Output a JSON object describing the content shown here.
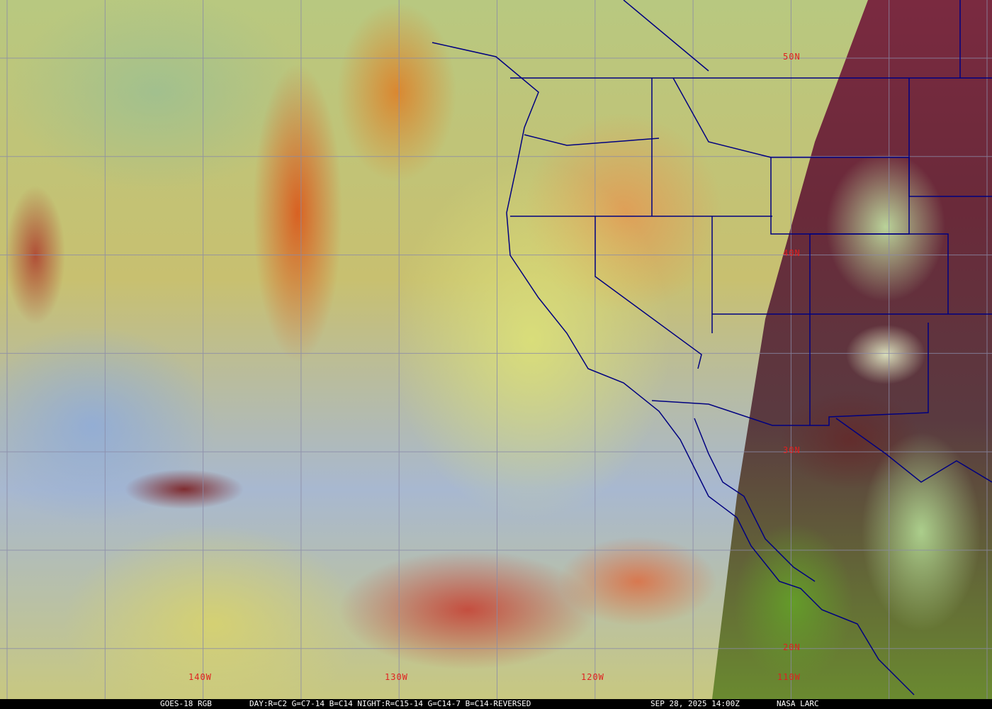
{
  "map": {
    "lat_labels": [
      "50N",
      "40N",
      "30N",
      "20N"
    ],
    "lon_labels": [
      "140W",
      "130W",
      "120W",
      "110W"
    ],
    "grid_color": "#8a8aa8",
    "label_color": "#e02020",
    "boundary_color": "#000080"
  },
  "caption": {
    "satellite": "GOES-18 RGB",
    "recipe": "DAY:R=C2 G=C7-14 B=C14 NIGHT:R=C15-14 G=C14-7 B=C14-REVERSED",
    "timestamp": "SEP 28, 2025 14:00Z",
    "source": "NASA LARC"
  }
}
